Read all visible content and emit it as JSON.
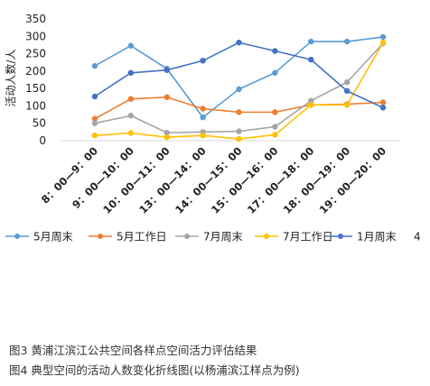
{
  "chart_data": {
    "type": "line",
    "ylabel": "活动人数/人",
    "ylim": [
      0,
      350
    ],
    "yticks": [
      0,
      50,
      100,
      150,
      200,
      250,
      300,
      350
    ],
    "grid": false,
    "legend_position": "bottom",
    "categories": [
      "8：00—9：00",
      "9：00—10：00",
      "10：00—11：00",
      "13：00—14：00",
      "14：00—15：00",
      "15：00—16：00",
      "17：00—18：00",
      "18：00—19：00",
      "19：00—20：00"
    ],
    "series": [
      {
        "name": "5月周末",
        "color": "#5b9bd5",
        "marker": "circle",
        "values": [
          215,
          273,
          207,
          67,
          148,
          195,
          285,
          285,
          298
        ]
      },
      {
        "name": "5月工作日",
        "color": "#ed7d31",
        "marker": "circle",
        "values": [
          63,
          120,
          125,
          92,
          82,
          82,
          103,
          105,
          110
        ]
      },
      {
        "name": "7月周末",
        "color": "#a5a5a5",
        "marker": "circle",
        "values": [
          50,
          72,
          23,
          25,
          27,
          40,
          115,
          168,
          280
        ]
      },
      {
        "name": "7月工作日",
        "color": "#ffc000",
        "marker": "circle",
        "values": [
          15,
          22,
          10,
          15,
          5,
          17,
          103,
          103,
          282
        ]
      },
      {
        "name": "1月周末",
        "color": "#4472c4",
        "marker": "circle",
        "values": [
          127,
          195,
          203,
          230,
          282,
          258,
          233,
          143,
          95
        ]
      }
    ],
    "legend_trailing_text": "4"
  },
  "captions": [
    "图3  黄浦江滨江公共空间各样点空间活力评估结果",
    "图4  典型空间的活动人数变化折线图(以杨浦滨江样点为例)"
  ]
}
